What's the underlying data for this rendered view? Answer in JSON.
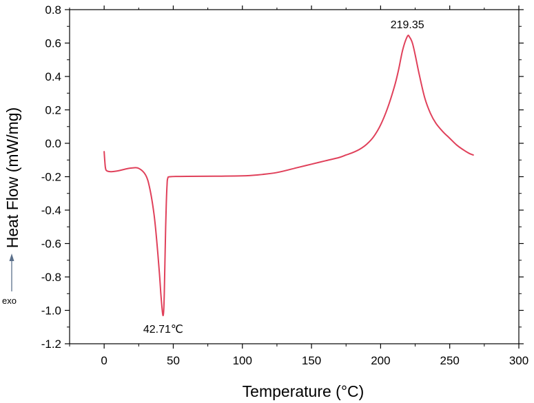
{
  "chart_data": {
    "type": "line",
    "title": "",
    "xlabel": "Temperature (°C)",
    "ylabel": "Heat Flow (mW/mg)",
    "xlim": [
      -25,
      300
    ],
    "ylim": [
      -1.2,
      0.8
    ],
    "x_ticks": [
      0,
      50,
      100,
      150,
      200,
      250,
      300
    ],
    "x_tick_labels": [
      "0",
      "50",
      "100",
      "150",
      "200",
      "250",
      "300"
    ],
    "y_ticks": [
      0.8,
      0.6,
      0.4,
      0.2,
      0.0,
      -0.2,
      -0.4,
      -0.6,
      -0.8,
      -1.0,
      -1.2
    ],
    "y_tick_labels": [
      "0.8",
      "0.6",
      "0.4",
      "0.2",
      "0.0",
      "-0.2",
      "-0.4",
      "-0.6",
      "-0.8",
      "-1.0",
      "-1.2"
    ],
    "grid": false,
    "line_color": "#e0405a",
    "series": [
      {
        "x": [
          0,
          0.5,
          1,
          2,
          5,
          10,
          15,
          20,
          25,
          30,
          33,
          36,
          38,
          40,
          41,
          41.8,
          42.3,
          42.71,
          43.1,
          43.5,
          44,
          44.5,
          45,
          45.5,
          46,
          48,
          60,
          80,
          100,
          110,
          125,
          140,
          150,
          160,
          170,
          175,
          180,
          185,
          190,
          195,
          200,
          205,
          210,
          213,
          216,
          219.35,
          221,
          223,
          225,
          228,
          232,
          236,
          240,
          245,
          250,
          255,
          260,
          264,
          267
        ],
        "y": [
          -0.05,
          -0.11,
          -0.15,
          -0.165,
          -0.17,
          -0.165,
          -0.155,
          -0.148,
          -0.15,
          -0.19,
          -0.27,
          -0.42,
          -0.58,
          -0.78,
          -0.9,
          -0.98,
          -1.02,
          -1.03,
          -1.0,
          -0.9,
          -0.7,
          -0.5,
          -0.35,
          -0.25,
          -0.21,
          -0.2,
          -0.198,
          -0.197,
          -0.195,
          -0.19,
          -0.175,
          -0.145,
          -0.125,
          -0.105,
          -0.085,
          -0.07,
          -0.055,
          -0.035,
          -0.005,
          0.04,
          0.11,
          0.21,
          0.34,
          0.44,
          0.56,
          0.64,
          0.635,
          0.6,
          0.53,
          0.41,
          0.27,
          0.18,
          0.12,
          0.07,
          0.03,
          -0.01,
          -0.04,
          -0.06,
          -0.07
        ]
      }
    ],
    "annotations": [
      {
        "text": "219.35",
        "x": 219.35,
        "y": 0.64,
        "anchor": "above"
      },
      {
        "text": "42.71℃",
        "x": 42.71,
        "y": -1.03,
        "anchor": "below"
      }
    ],
    "side_marker": {
      "text": "exo",
      "arrow": "up"
    }
  }
}
